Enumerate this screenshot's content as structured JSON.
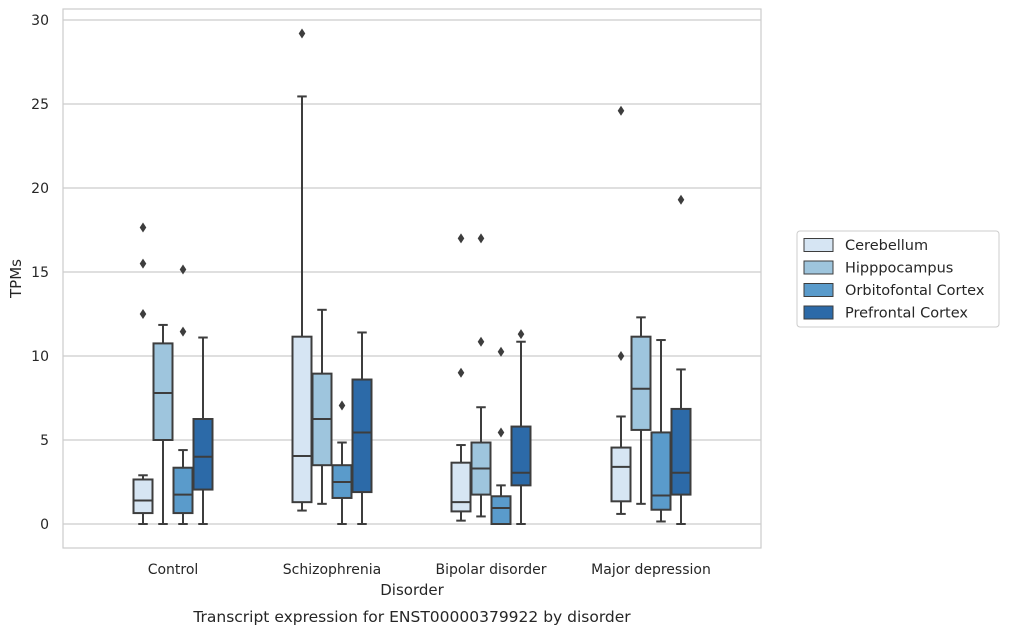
{
  "caption": "Transcript expression for ENST00000379922 by disorder",
  "chart_data": {
    "type": "box",
    "xlabel": "Disorder",
    "ylabel": "TPMs",
    "ylim": [
      -1.4,
      30.6
    ],
    "yticks": [
      0,
      5,
      10,
      15,
      20,
      25,
      30
    ],
    "grid": "horizontal",
    "legend_position": "right",
    "categories": [
      "Control",
      "Schizophrenia",
      "Bipolar disorder",
      "Major depression"
    ],
    "series": [
      {
        "name": "Cerebellum",
        "color": "#d6e5f3",
        "boxes": [
          {
            "whislo": 0.0,
            "q1": 0.65,
            "med": 1.4,
            "q3": 2.65,
            "whishi": 2.9,
            "fliers": [
              12.5,
              15.5,
              17.65
            ]
          },
          {
            "whislo": 0.8,
            "q1": 1.3,
            "med": 4.05,
            "q3": 11.15,
            "whishi": 25.45,
            "fliers": [
              29.2
            ]
          },
          {
            "whislo": 0.2,
            "q1": 0.75,
            "med": 1.3,
            "q3": 3.65,
            "whishi": 4.7,
            "fliers": [
              9.0,
              17.0
            ]
          },
          {
            "whislo": 0.6,
            "q1": 1.35,
            "med": 3.4,
            "q3": 4.55,
            "whishi": 6.4,
            "fliers": [
              10.0,
              24.6
            ]
          }
        ]
      },
      {
        "name": "Hipppocampus",
        "color": "#9ec5dd",
        "boxes": [
          {
            "whislo": 0.0,
            "q1": 5.0,
            "med": 7.8,
            "q3": 10.75,
            "whishi": 11.85,
            "fliers": []
          },
          {
            "whislo": 1.2,
            "q1": 3.5,
            "med": 6.25,
            "q3": 8.95,
            "whishi": 12.75,
            "fliers": []
          },
          {
            "whislo": 0.45,
            "q1": 1.75,
            "med": 3.3,
            "q3": 4.85,
            "whishi": 6.95,
            "fliers": [
              10.85,
              17.0
            ]
          },
          {
            "whislo": 1.2,
            "q1": 5.6,
            "med": 8.05,
            "q3": 11.15,
            "whishi": 12.3,
            "fliers": []
          }
        ]
      },
      {
        "name": "Orbitofontal Cortex",
        "color": "#5a9bcb",
        "boxes": [
          {
            "whislo": 0.0,
            "q1": 0.65,
            "med": 1.75,
            "q3": 3.35,
            "whishi": 4.4,
            "fliers": [
              11.45,
              15.15
            ]
          },
          {
            "whislo": 0.0,
            "q1": 1.55,
            "med": 2.5,
            "q3": 3.5,
            "whishi": 4.85,
            "fliers": [
              7.05
            ]
          },
          {
            "whislo": 0.0,
            "q1": 0.0,
            "med": 0.95,
            "q3": 1.65,
            "whishi": 2.3,
            "fliers": [
              5.45,
              10.25
            ]
          },
          {
            "whislo": 0.15,
            "q1": 0.85,
            "med": 1.7,
            "q3": 5.45,
            "whishi": 10.95,
            "fliers": []
          }
        ]
      },
      {
        "name": "Prefrontal Cortex",
        "color": "#2c6aa8",
        "boxes": [
          {
            "whislo": 0.0,
            "q1": 2.05,
            "med": 4.0,
            "q3": 6.25,
            "whishi": 11.1,
            "fliers": []
          },
          {
            "whislo": 0.0,
            "q1": 1.9,
            "med": 5.45,
            "q3": 8.6,
            "whishi": 11.4,
            "fliers": []
          },
          {
            "whislo": 0.0,
            "q1": 2.3,
            "med": 3.05,
            "q3": 5.8,
            "whishi": 10.85,
            "fliers": [
              11.3
            ]
          },
          {
            "whislo": 0.0,
            "q1": 1.75,
            "med": 3.05,
            "q3": 6.85,
            "whishi": 9.2,
            "fliers": [
              19.3
            ]
          }
        ]
      }
    ]
  }
}
